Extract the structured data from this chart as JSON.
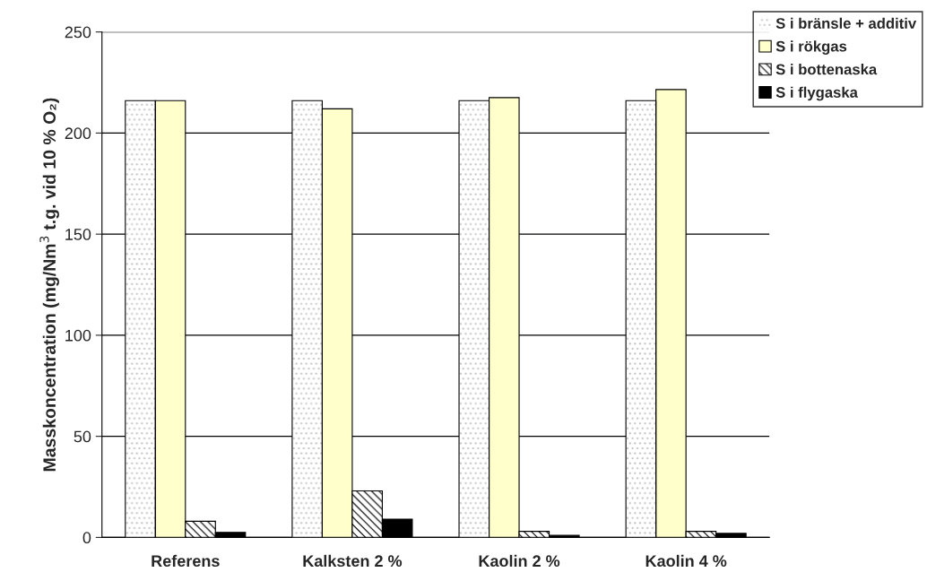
{
  "chart_data": {
    "type": "bar",
    "ylabel": "Masskoncentration (mg/Nm$^{3}$ t.g. vid 10 % O₂)",
    "categories": [
      "Referens",
      "Kalksten 2 %",
      "Kaolin 2 %",
      "Kaolin 4 %"
    ],
    "series": [
      {
        "name": "S i bränsle + additiv",
        "color": "#c0c0c0",
        "values": [
          216,
          216,
          216,
          216
        ]
      },
      {
        "name": "S i rökgas",
        "color": "#ffffcc",
        "values": [
          216,
          212,
          217.5,
          221.5
        ]
      },
      {
        "name": "S i bottenaska",
        "color": "#000000",
        "values": [
          8,
          23,
          3,
          3
        ]
      },
      {
        "name": "S i flygaska",
        "color": "#000000",
        "values": [
          2.5,
          9,
          1,
          2
        ]
      }
    ],
    "ylim": [
      0,
      250
    ],
    "yticks": [
      0,
      50,
      100,
      150,
      200,
      250
    ],
    "grid": "y",
    "legend": "top right"
  }
}
